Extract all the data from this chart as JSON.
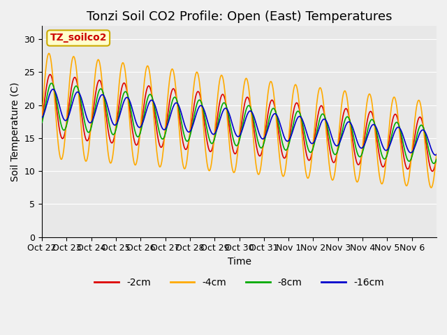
{
  "title": "Tonzi Soil CO2 Profile: Open (East) Temperatures",
  "xlabel": "Time",
  "ylabel": "Soil Temperature (C)",
  "legend_label": "TZ_soilco2",
  "legend_box_color": "#ffffcc",
  "legend_box_edge": "#ccaa00",
  "legend_text_color": "#cc0000",
  "series_labels": [
    "-2cm",
    "-4cm",
    "-8cm",
    "-16cm"
  ],
  "series_colors": [
    "#dd0000",
    "#ffaa00",
    "#00aa00",
    "#0000cc"
  ],
  "tick_labels": [
    "Oct 22",
    "Oct 23",
    "Oct 24",
    "Oct 25",
    "Oct 26",
    "Oct 27",
    "Oct 28",
    "Oct 29",
    "Oct 30",
    "Oct 31",
    "Nov 1",
    "Nov 2",
    "Nov 3",
    "Nov 4",
    "Nov 5",
    "Nov 6"
  ],
  "ylim": [
    0,
    32
  ],
  "yticks": [
    0,
    5,
    10,
    15,
    20,
    25,
    30
  ],
  "plot_bg_color": "#e8e8e8",
  "fig_bg_color": "#f0f0f0",
  "grid_color": "#ffffff",
  "title_fontsize": 13,
  "axis_label_fontsize": 10,
  "tick_fontsize": 9
}
